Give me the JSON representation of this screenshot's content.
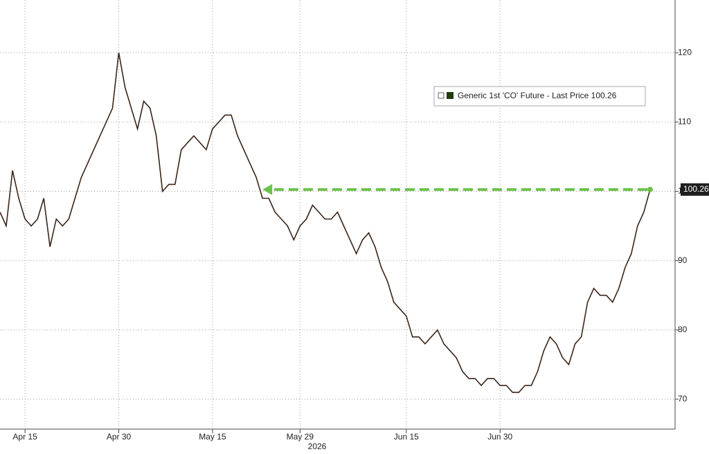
{
  "chart_data": {
    "type": "line",
    "x": [
      "2026-04-11",
      "2026-04-12",
      "2026-04-13",
      "2026-04-14",
      "2026-04-15",
      "2026-04-16",
      "2026-04-17",
      "2026-04-18",
      "2026-04-19",
      "2026-04-20",
      "2026-04-21",
      "2026-04-22",
      "2026-04-23",
      "2026-04-24",
      "2026-04-25",
      "2026-04-26",
      "2026-04-27",
      "2026-04-28",
      "2026-04-29",
      "2026-04-30",
      "2026-05-01",
      "2026-05-02",
      "2026-05-03",
      "2026-05-04",
      "2026-05-05",
      "2026-05-06",
      "2026-05-07",
      "2026-05-08",
      "2026-05-09",
      "2026-05-10",
      "2026-05-11",
      "2026-05-12",
      "2026-05-13",
      "2026-05-14",
      "2026-05-15",
      "2026-05-16",
      "2026-05-17",
      "2026-05-18",
      "2026-05-19",
      "2026-05-20",
      "2026-05-21",
      "2026-05-22",
      "2026-05-23",
      "2026-05-24",
      "2026-05-25",
      "2026-05-26",
      "2026-05-27",
      "2026-05-28",
      "2026-05-29",
      "2026-05-30",
      "2026-05-31",
      "2026-06-01",
      "2026-06-02",
      "2026-06-03",
      "2026-06-04",
      "2026-06-05",
      "2026-06-06",
      "2026-06-07",
      "2026-06-08",
      "2026-06-09",
      "2026-06-10",
      "2026-06-11",
      "2026-06-12",
      "2026-06-13",
      "2026-06-14",
      "2026-06-15",
      "2026-06-16",
      "2026-06-17",
      "2026-06-18",
      "2026-06-19",
      "2026-06-20",
      "2026-06-21",
      "2026-06-22",
      "2026-06-23",
      "2026-06-24",
      "2026-06-25",
      "2026-06-26",
      "2026-06-27",
      "2026-06-28",
      "2026-06-29",
      "2026-06-30",
      "2026-07-01",
      "2026-07-02",
      "2026-07-03",
      "2026-07-04",
      "2026-07-05",
      "2026-07-06",
      "2026-07-07",
      "2026-07-08",
      "2026-07-09",
      "2026-07-10",
      "2026-07-11",
      "2026-07-12",
      "2026-07-13",
      "2026-07-14",
      "2026-07-15",
      "2026-07-16",
      "2026-07-17",
      "2026-07-18",
      "2026-07-19",
      "2026-07-20",
      "2026-07-21",
      "2026-07-22",
      "2026-07-23",
      "2026-07-24"
    ],
    "series": [
      {
        "name": "Generic 1st 'CO' Future - Last Price 100.26",
        "color": "#3a2418",
        "values": [
          97,
          95,
          103,
          99,
          96,
          95,
          96,
          99,
          92,
          96,
          95,
          96,
          99,
          102,
          104,
          106,
          108,
          110,
          112,
          120,
          115,
          112,
          109,
          113,
          112,
          108,
          100,
          101,
          101,
          106,
          107,
          108,
          107,
          106,
          109,
          110,
          111,
          111,
          108,
          106,
          104,
          102,
          99,
          99,
          97,
          96,
          95,
          93,
          95,
          96,
          98,
          97,
          96,
          96,
          97,
          95,
          93,
          91,
          93,
          94,
          92,
          89,
          87,
          84,
          83,
          82,
          79,
          79,
          78,
          79,
          80,
          78,
          77,
          76,
          74,
          73,
          73,
          72,
          73,
          73,
          72,
          72,
          71,
          71,
          72,
          72,
          74,
          77,
          79,
          78,
          76,
          75,
          78,
          79,
          84,
          86,
          85,
          85,
          84,
          86,
          89,
          91,
          95,
          97,
          100.26
        ]
      }
    ],
    "xlim": [
      "2026-04-11",
      "2026-07-28"
    ],
    "xticks": [
      {
        "value": "2026-04-15",
        "label": "Apr 15"
      },
      {
        "value": "2026-04-30",
        "label": "Apr 30"
      },
      {
        "value": "2026-05-15",
        "label": "May 15"
      },
      {
        "value": "2026-05-29",
        "label": "May 29"
      },
      {
        "value": "2026-06-15",
        "label": "Jun 15"
      },
      {
        "value": "2026-06-30",
        "label": "Jun 30"
      }
    ],
    "x_year_label": "2026",
    "ylim": [
      65.7,
      127.6
    ],
    "yticks": [
      70,
      80,
      90,
      100,
      110,
      120
    ],
    "y_axis_side": "right",
    "grid": true,
    "arrow": {
      "to": "2026-05-23",
      "color": "#6cc24a"
    }
  }
}
